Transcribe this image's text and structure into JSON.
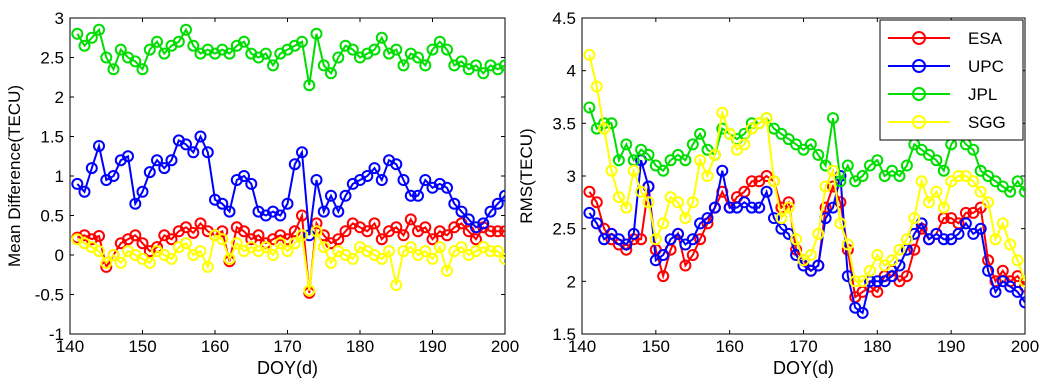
{
  "chart_data": [
    {
      "type": "line",
      "title": "",
      "xlabel": "DOY(d)",
      "ylabel": "Mean Difference(TECU)",
      "xlim": [
        140,
        200
      ],
      "ylim": [
        -1,
        3
      ],
      "xticks": [
        140,
        150,
        160,
        170,
        180,
        190,
        200
      ],
      "yticks": [
        -1,
        -0.5,
        0,
        0.5,
        1,
        1.5,
        2,
        2.5,
        3
      ],
      "x": [
        141,
        142,
        143,
        144,
        145,
        146,
        147,
        148,
        149,
        150,
        151,
        152,
        153,
        154,
        155,
        156,
        157,
        158,
        159,
        160,
        161,
        162,
        163,
        164,
        165,
        166,
        167,
        168,
        169,
        170,
        171,
        172,
        173,
        174,
        175,
        176,
        177,
        178,
        179,
        180,
        181,
        182,
        183,
        184,
        185,
        186,
        187,
        188,
        189,
        190,
        191,
        192,
        193,
        194,
        195,
        196,
        197,
        198,
        199,
        200
      ],
      "grid": false,
      "series": [
        {
          "name": "ESA",
          "color": "#ff0000",
          "values": [
            0.22,
            0.25,
            0.2,
            0.24,
            -0.15,
            0.0,
            0.15,
            0.2,
            0.25,
            0.15,
            0.05,
            0.1,
            0.25,
            0.2,
            0.3,
            0.35,
            0.28,
            0.4,
            0.3,
            0.25,
            0.3,
            -0.08,
            0.35,
            0.3,
            0.2,
            0.25,
            0.15,
            0.2,
            0.25,
            0.2,
            0.3,
            0.5,
            -0.48,
            0.4,
            0.25,
            0.15,
            0.2,
            0.3,
            0.4,
            0.35,
            0.3,
            0.4,
            0.2,
            0.3,
            0.35,
            0.25,
            0.45,
            0.3,
            0.35,
            0.2,
            0.3,
            0.25,
            0.35,
            0.4,
            0.3,
            0.2,
            0.35,
            0.3,
            0.3,
            0.3
          ]
        },
        {
          "name": "UPC",
          "color": "#0000ff",
          "values": [
            0.9,
            0.8,
            1.1,
            1.38,
            0.95,
            1.0,
            1.2,
            1.25,
            0.65,
            0.8,
            1.05,
            1.2,
            1.1,
            1.2,
            1.45,
            1.4,
            1.3,
            1.5,
            1.3,
            0.7,
            0.65,
            0.55,
            0.95,
            1.0,
            0.9,
            0.55,
            0.5,
            0.55,
            0.5,
            0.65,
            1.15,
            1.3,
            0.25,
            0.95,
            0.55,
            0.75,
            0.55,
            0.75,
            0.9,
            0.95,
            1.0,
            1.1,
            0.95,
            1.2,
            1.15,
            0.95,
            0.75,
            0.75,
            0.95,
            0.85,
            0.9,
            0.85,
            0.65,
            0.55,
            0.45,
            0.35,
            0.4,
            0.55,
            0.65,
            0.75
          ]
        },
        {
          "name": "JPL",
          "color": "#00dd00",
          "values": [
            2.8,
            2.65,
            2.75,
            2.85,
            2.5,
            2.35,
            2.6,
            2.5,
            2.45,
            2.35,
            2.6,
            2.7,
            2.55,
            2.65,
            2.7,
            2.85,
            2.65,
            2.55,
            2.6,
            2.55,
            2.6,
            2.55,
            2.65,
            2.7,
            2.55,
            2.5,
            2.55,
            2.4,
            2.55,
            2.6,
            2.65,
            2.7,
            2.15,
            2.8,
            2.4,
            2.3,
            2.5,
            2.65,
            2.6,
            2.5,
            2.55,
            2.6,
            2.75,
            2.55,
            2.6,
            2.4,
            2.55,
            2.5,
            2.4,
            2.6,
            2.7,
            2.6,
            2.4,
            2.45,
            2.35,
            2.4,
            2.3,
            2.4,
            2.35,
            2.4
          ]
        },
        {
          "name": "SGG",
          "color": "#ffff00",
          "values": [
            0.2,
            0.15,
            0.1,
            0.05,
            -0.1,
            0.0,
            -0.1,
            0.05,
            0.0,
            -0.05,
            -0.1,
            0.05,
            0.0,
            -0.05,
            0.1,
            0.15,
            0.0,
            0.05,
            -0.15,
            0.25,
            0.2,
            -0.05,
            0.15,
            0.05,
            0.1,
            0.05,
            0.1,
            0.0,
            0.15,
            0.05,
            0.15,
            0.25,
            -0.45,
            0.3,
            0.1,
            -0.1,
            0.05,
            0.0,
            -0.05,
            0.1,
            0.05,
            0.0,
            -0.05,
            0.05,
            -0.38,
            0.05,
            0.1,
            0.0,
            0.05,
            -0.05,
            0.1,
            -0.2,
            0.05,
            0.1,
            0.0,
            0.05,
            0.1,
            0.05,
            0.05,
            -0.05
          ]
        }
      ]
    },
    {
      "type": "line",
      "title": "",
      "xlabel": "DOY(d)",
      "ylabel": "RMS(TECU)",
      "xlim": [
        140,
        200
      ],
      "ylim": [
        1.5,
        4.5
      ],
      "xticks": [
        140,
        150,
        160,
        170,
        180,
        190,
        200
      ],
      "yticks": [
        1.5,
        2,
        2.5,
        3,
        3.5,
        4,
        4.5
      ],
      "legend": "top-right",
      "x": [
        141,
        142,
        143,
        144,
        145,
        146,
        147,
        148,
        149,
        150,
        151,
        152,
        153,
        154,
        155,
        156,
        157,
        158,
        159,
        160,
        161,
        162,
        163,
        164,
        165,
        166,
        167,
        168,
        169,
        170,
        171,
        172,
        173,
        174,
        175,
        176,
        177,
        178,
        179,
        180,
        181,
        182,
        183,
        184,
        185,
        186,
        187,
        188,
        189,
        190,
        191,
        192,
        193,
        194,
        195,
        196,
        197,
        198,
        199,
        200
      ],
      "grid": false,
      "series": [
        {
          "name": "ESA",
          "color": "#ff0000",
          "values": [
            2.85,
            2.75,
            2.5,
            2.4,
            2.35,
            2.3,
            2.4,
            2.4,
            2.9,
            2.3,
            2.05,
            2.3,
            2.45,
            2.15,
            2.25,
            2.4,
            2.55,
            2.7,
            2.85,
            2.7,
            2.8,
            2.85,
            2.95,
            2.95,
            3.0,
            2.95,
            2.7,
            2.75,
            2.3,
            2.2,
            2.1,
            2.15,
            2.7,
            2.9,
            2.75,
            2.3,
            1.85,
            1.9,
            1.95,
            1.9,
            2.05,
            2.1,
            2.0,
            2.05,
            2.3,
            2.5,
            2.4,
            2.45,
            2.6,
            2.6,
            2.55,
            2.65,
            2.65,
            2.7,
            2.2,
            2.0,
            2.1,
            2.0,
            2.05,
            1.95
          ]
        },
        {
          "name": "UPC",
          "color": "#0000ff",
          "values": [
            2.65,
            2.55,
            2.4,
            2.45,
            2.4,
            2.35,
            2.45,
            3.15,
            2.9,
            2.2,
            2.25,
            2.4,
            2.45,
            2.35,
            2.4,
            2.55,
            2.6,
            2.7,
            3.05,
            2.7,
            2.7,
            2.75,
            2.7,
            2.7,
            2.85,
            2.6,
            2.5,
            2.45,
            2.25,
            2.15,
            2.1,
            2.15,
            2.6,
            2.7,
            3.0,
            2.05,
            1.75,
            1.7,
            2.0,
            2.0,
            2.0,
            2.05,
            2.15,
            2.3,
            2.45,
            2.55,
            2.4,
            2.45,
            2.4,
            2.4,
            2.45,
            2.55,
            2.45,
            2.5,
            2.1,
            1.9,
            2.0,
            1.95,
            1.9,
            1.8
          ]
        },
        {
          "name": "JPL",
          "color": "#00dd00",
          "values": [
            3.65,
            3.45,
            3.5,
            3.5,
            3.15,
            3.3,
            3.15,
            3.25,
            3.2,
            3.1,
            3.05,
            3.15,
            3.2,
            3.15,
            3.3,
            3.4,
            3.25,
            3.2,
            3.45,
            3.4,
            3.35,
            3.4,
            3.5,
            3.5,
            3.55,
            3.45,
            3.4,
            3.35,
            3.3,
            3.25,
            3.3,
            3.2,
            3.1,
            3.55,
            2.95,
            3.1,
            2.95,
            3.0,
            3.1,
            3.15,
            3.0,
            3.05,
            3.0,
            3.1,
            3.3,
            3.25,
            3.2,
            3.15,
            3.05,
            3.3,
            3.4,
            3.3,
            3.25,
            3.05,
            3.0,
            2.95,
            2.9,
            2.85,
            2.95,
            2.85
          ]
        },
        {
          "name": "SGG",
          "color": "#ffff00",
          "values": [
            4.15,
            3.85,
            3.45,
            3.05,
            2.8,
            2.7,
            3.05,
            2.85,
            2.75,
            2.4,
            2.55,
            2.8,
            2.75,
            2.6,
            2.75,
            3.15,
            3.0,
            3.2,
            3.6,
            3.4,
            3.25,
            3.3,
            3.45,
            3.5,
            3.55,
            2.95,
            2.6,
            2.7,
            2.4,
            2.2,
            2.25,
            2.45,
            2.9,
            3.05,
            2.55,
            2.35,
            2.0,
            2.0,
            2.1,
            2.25,
            2.15,
            2.2,
            2.3,
            2.4,
            2.6,
            2.95,
            2.75,
            2.85,
            2.7,
            2.95,
            3.0,
            3.0,
            2.95,
            2.85,
            2.75,
            2.4,
            2.55,
            2.35,
            2.2,
            2.0
          ]
        }
      ]
    }
  ]
}
